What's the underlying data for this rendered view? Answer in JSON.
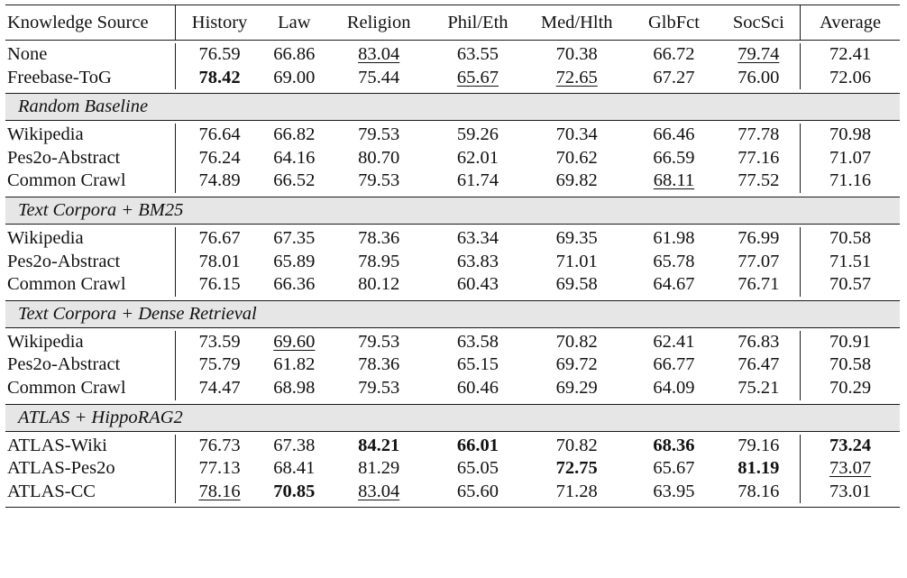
{
  "table": {
    "columns": [
      "Knowledge Source",
      "History",
      "Law",
      "Religion",
      "Phil/Eth",
      "Med/Hlth",
      "GlbFct",
      "SocSci",
      "Average"
    ],
    "sections": [
      {
        "title": "",
        "rows": [
          {
            "name": "None",
            "values": [
              "76.59",
              "66.86",
              "83.04",
              "63.55",
              "70.38",
              "66.72",
              "79.74",
              "72.41"
            ],
            "bold": [],
            "underline": [
              2,
              6
            ]
          },
          {
            "name": "Freebase-ToG",
            "values": [
              "78.42",
              "69.00",
              "75.44",
              "65.67",
              "72.65",
              "67.27",
              "76.00",
              "72.06"
            ],
            "bold": [
              0
            ],
            "underline": [
              3,
              4
            ]
          }
        ]
      },
      {
        "title": "Random Baseline",
        "rows": [
          {
            "name": "Wikipedia",
            "values": [
              "76.64",
              "66.82",
              "79.53",
              "59.26",
              "70.34",
              "66.46",
              "77.78",
              "70.98"
            ],
            "bold": [],
            "underline": []
          },
          {
            "name": "Pes2o-Abstract",
            "values": [
              "76.24",
              "64.16",
              "80.70",
              "62.01",
              "70.62",
              "66.59",
              "77.16",
              "71.07"
            ],
            "bold": [],
            "underline": []
          },
          {
            "name": "Common Crawl",
            "values": [
              "74.89",
              "66.52",
              "79.53",
              "61.74",
              "69.82",
              "68.11",
              "77.52",
              "71.16"
            ],
            "bold": [],
            "underline": [
              5
            ]
          }
        ]
      },
      {
        "title": "Text Corpora + BM25",
        "rows": [
          {
            "name": "Wikipedia",
            "values": [
              "76.67",
              "67.35",
              "78.36",
              "63.34",
              "69.35",
              "61.98",
              "76.99",
              "70.58"
            ],
            "bold": [],
            "underline": []
          },
          {
            "name": "Pes2o-Abstract",
            "values": [
              "78.01",
              "65.89",
              "78.95",
              "63.83",
              "71.01",
              "65.78",
              "77.07",
              "71.51"
            ],
            "bold": [],
            "underline": []
          },
          {
            "name": "Common Crawl",
            "values": [
              "76.15",
              "66.36",
              "80.12",
              "60.43",
              "69.58",
              "64.67",
              "76.71",
              "70.57"
            ],
            "bold": [],
            "underline": []
          }
        ]
      },
      {
        "title": "Text Corpora + Dense Retrieval",
        "rows": [
          {
            "name": "Wikipedia",
            "values": [
              "73.59",
              "69.60",
              "79.53",
              "63.58",
              "70.82",
              "62.41",
              "76.83",
              "70.91"
            ],
            "bold": [],
            "underline": [
              1
            ]
          },
          {
            "name": "Pes2o-Abstract",
            "values": [
              "75.79",
              "61.82",
              "78.36",
              "65.15",
              "69.72",
              "66.77",
              "76.47",
              "70.58"
            ],
            "bold": [],
            "underline": []
          },
          {
            "name": "Common Crawl",
            "values": [
              "74.47",
              "68.98",
              "79.53",
              "60.46",
              "69.29",
              "64.09",
              "75.21",
              "70.29"
            ],
            "bold": [],
            "underline": []
          }
        ]
      },
      {
        "title": "ATLAS + HippoRAG2",
        "rows": [
          {
            "name": "ATLAS-Wiki",
            "values": [
              "76.73",
              "67.38",
              "84.21",
              "66.01",
              "70.82",
              "68.36",
              "79.16",
              "73.24"
            ],
            "bold": [
              2,
              3,
              5,
              7
            ],
            "underline": []
          },
          {
            "name": "ATLAS-Pes2o",
            "values": [
              "77.13",
              "68.41",
              "81.29",
              "65.05",
              "72.75",
              "65.67",
              "81.19",
              "73.07"
            ],
            "bold": [
              4,
              6
            ],
            "underline": [
              7
            ]
          },
          {
            "name": "ATLAS-CC",
            "values": [
              "78.16",
              "70.85",
              "83.04",
              "65.60",
              "71.28",
              "63.95",
              "78.16",
              "73.01"
            ],
            "bold": [
              1
            ],
            "underline": [
              0,
              2
            ]
          }
        ]
      }
    ]
  }
}
